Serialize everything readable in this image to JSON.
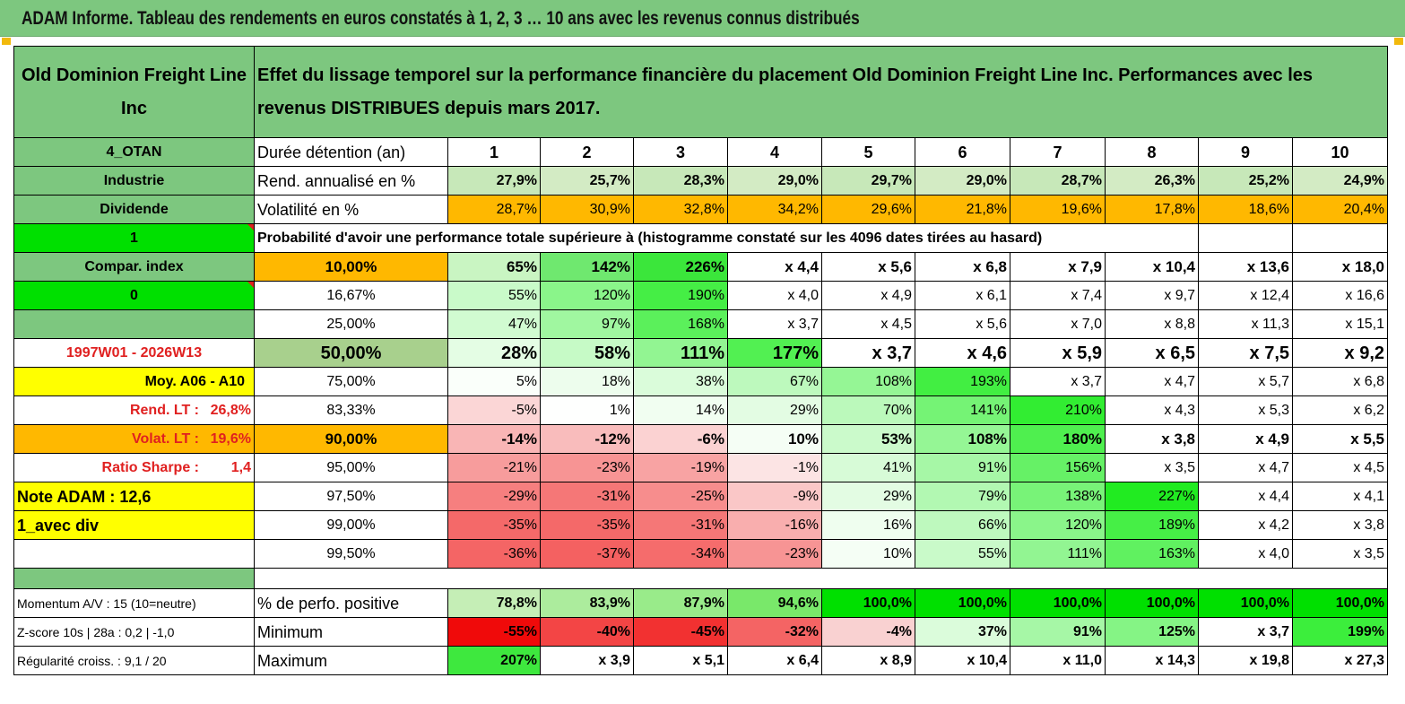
{
  "title": "ADAM Informe. Tableau des rendements en euros constatés à 1, 2, 3 … 10 ans avec les revenus connus distribués",
  "company": "Old Dominion Freight Line Inc",
  "heading": "Effet du lissage temporel sur la performance financière du placement Old Dominion Freight Line Inc. Performances avec les revenus DISTRIBUES depuis mars 2017.",
  "colors": {
    "header_green": "#7dc77f",
    "orange": "#ffb800",
    "yellow": "#ffff00",
    "bright_green": "#00e000",
    "red_text": "#e02020"
  },
  "rows": [
    {
      "label": "4_OTAN",
      "desc": "Durée détention (an)",
      "cells": [
        "1",
        "2",
        "3",
        "4",
        "5",
        "6",
        "7",
        "8",
        "9",
        "10"
      ]
    },
    {
      "label": "Industrie",
      "desc": "Rend. annualisé en %",
      "cells": [
        "27,9%",
        "25,7%",
        "28,3%",
        "29,0%",
        "29,7%",
        "29,0%",
        "28,7%",
        "26,3%",
        "25,2%",
        "24,9%"
      ]
    },
    {
      "label": "Dividende",
      "desc": "Volatilité en %",
      "cells": [
        "28,7%",
        "30,9%",
        "32,8%",
        "34,2%",
        "29,6%",
        "21,8%",
        "19,6%",
        "17,8%",
        "18,6%",
        "20,4%"
      ]
    },
    {
      "label": "1",
      "desc": "Probabilité d'avoir une performance totale supérieure à (histogramme constaté sur les 4096 dates tirées au hasard)",
      "cells": []
    },
    {
      "label": "Compar. index",
      "desc": "10,00%",
      "cells": [
        "65%",
        "142%",
        "226%",
        "x 4,4",
        "x 5,6",
        "x 6,8",
        "x 7,9",
        "x 10,4",
        "x 13,6",
        "x 18,0"
      ]
    },
    {
      "label": "0",
      "desc": "16,67%",
      "cells": [
        "55%",
        "120%",
        "190%",
        "x 4,0",
        "x 4,9",
        "x 6,1",
        "x 7,4",
        "x 9,7",
        "x 12,4",
        "x 16,6"
      ]
    },
    {
      "label": "",
      "desc": "25,00%",
      "cells": [
        "47%",
        "97%",
        "168%",
        "x 3,7",
        "x 4,5",
        "x 5,6",
        "x 7,0",
        "x 8,8",
        "x 11,3",
        "x 15,1"
      ]
    },
    {
      "label": "1997W01 - 2026W13",
      "desc": "50,00%",
      "cells": [
        "28%",
        "58%",
        "111%",
        "177%",
        "x 3,7",
        "x 4,6",
        "x 5,9",
        "x 6,5",
        "x 7,5",
        "x 9,2"
      ]
    },
    {
      "label": "Moy. A06 - A10",
      "desc": "75,00%",
      "cells": [
        "5%",
        "18%",
        "38%",
        "67%",
        "108%",
        "193%",
        "x 3,7",
        "x 4,7",
        "x 5,7",
        "x 6,8"
      ]
    },
    {
      "label": "Rend. LT :",
      "label_value": "26,8%",
      "desc": "83,33%",
      "cells": [
        "-5%",
        "1%",
        "14%",
        "29%",
        "70%",
        "141%",
        "210%",
        "x 4,3",
        "x 5,3",
        "x 6,2"
      ]
    },
    {
      "label": "Volat. LT :",
      "label_value": "19,6%",
      "desc": "90,00%",
      "cells": [
        "-14%",
        "-12%",
        "-6%",
        "10%",
        "53%",
        "108%",
        "180%",
        "x 3,8",
        "x 4,9",
        "x 5,5"
      ]
    },
    {
      "label": "Ratio Sharpe :",
      "label_value": "1,4",
      "desc": "95,00%",
      "cells": [
        "-21%",
        "-23%",
        "-19%",
        "-1%",
        "41%",
        "91%",
        "156%",
        "x 3,5",
        "x 4,7",
        "x 4,5"
      ]
    },
    {
      "label": "Note ADAM : 12,6",
      "desc": "97,50%",
      "cells": [
        "-29%",
        "-31%",
        "-25%",
        "-9%",
        "29%",
        "79%",
        "138%",
        "227%",
        "x 4,4",
        "x 4,1"
      ]
    },
    {
      "label": "1_avec div",
      "desc": "99,00%",
      "cells": [
        "-35%",
        "-35%",
        "-31%",
        "-16%",
        "16%",
        "66%",
        "120%",
        "189%",
        "x 4,2",
        "x 3,8"
      ]
    },
    {
      "label": "",
      "desc": "99,50%",
      "cells": [
        "-36%",
        "-37%",
        "-34%",
        "-23%",
        "10%",
        "55%",
        "111%",
        "163%",
        "x 4,0",
        "x 3,5"
      ]
    },
    {
      "label": "",
      "desc": "",
      "cells": []
    },
    {
      "label": "Momentum A/V : 15 (10=neutre)",
      "desc": "% de perfo. positive",
      "cells": [
        "78,8%",
        "83,9%",
        "87,9%",
        "94,6%",
        "100,0%",
        "100,0%",
        "100,0%",
        "100,0%",
        "100,0%",
        "100,0%"
      ]
    },
    {
      "label": "Z-score 10s | 28a : 0,2 | -1,0",
      "desc": "Minimum",
      "cells": [
        "-55%",
        "-40%",
        "-45%",
        "-32%",
        "-4%",
        "37%",
        "91%",
        "125%",
        "x 3,7",
        "199%"
      ]
    },
    {
      "label": "Régularité croiss. : 9,1 / 20",
      "desc": "Maximum",
      "cells": [
        "207%",
        "x 3,9",
        "x 5,1",
        "x 6,4",
        "x 8,9",
        "x 10,4",
        "x 11,0",
        "x 14,3",
        "x 19,8",
        "x 27,3"
      ]
    }
  ]
}
